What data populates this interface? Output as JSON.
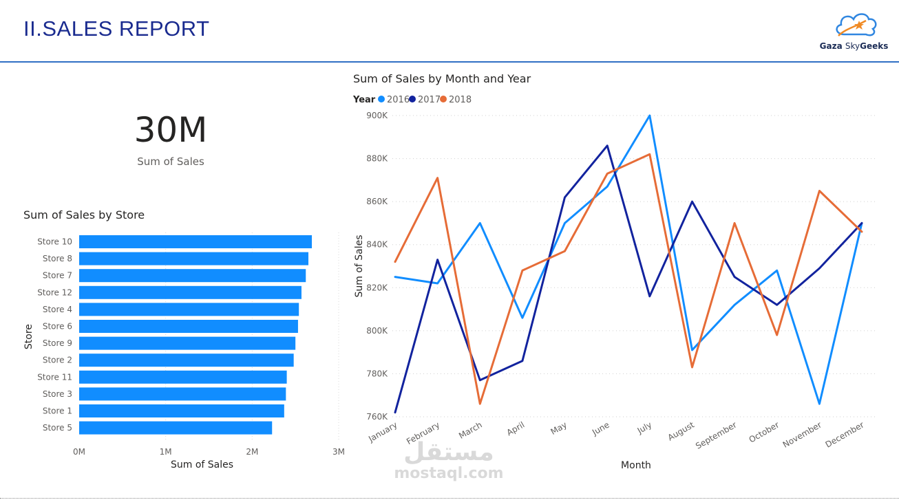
{
  "header": {
    "title": "II.SALES REPORT",
    "logo_text_1": "Gaza",
    "logo_text_2": "Sky",
    "logo_text_3": "Geeks"
  },
  "kpi": {
    "value": "30M",
    "label": "Sum of Sales"
  },
  "watermark": {
    "arabic": "مستقل",
    "latin": "mostaql.com"
  },
  "colors": {
    "bar": "#118dff",
    "s2016": "#118dff",
    "s2017": "#12239e",
    "s2018": "#e66c37",
    "title": "#1a2b8f"
  },
  "chart_data": [
    {
      "type": "bar",
      "orientation": "horizontal",
      "title": "Sum of Sales by Store",
      "xlabel": "Sum of Sales",
      "ylabel": "Store",
      "xlim": [
        0,
        3000000
      ],
      "xticks": [
        "0M",
        "1M",
        "2M",
        "3M"
      ],
      "categories": [
        "Store 10",
        "Store 8",
        "Store 7",
        "Store 12",
        "Store 4",
        "Store 6",
        "Store 9",
        "Store 2",
        "Store 11",
        "Store 3",
        "Store 1",
        "Store 5"
      ],
      "values": [
        2690000,
        2650000,
        2620000,
        2570000,
        2540000,
        2530000,
        2500000,
        2480000,
        2400000,
        2390000,
        2370000,
        2230000
      ]
    },
    {
      "type": "line",
      "title": "Sum of Sales by Month and Year",
      "xlabel": "Month",
      "ylabel": "Sum of Sales",
      "legend_title": "Year",
      "legend_position": "top-left",
      "ylim": [
        760000,
        900000
      ],
      "yticks": [
        "760K",
        "780K",
        "800K",
        "820K",
        "840K",
        "860K",
        "880K",
        "900K"
      ],
      "categories": [
        "January",
        "February",
        "March",
        "April",
        "May",
        "June",
        "July",
        "August",
        "September",
        "October",
        "November",
        "December"
      ],
      "series": [
        {
          "name": "2016",
          "values": [
            825000,
            822000,
            850000,
            806000,
            850000,
            867000,
            900000,
            791000,
            812000,
            828000,
            766000,
            850000
          ]
        },
        {
          "name": "2017",
          "values": [
            762000,
            833000,
            777000,
            786000,
            862000,
            886000,
            816000,
            860000,
            825000,
            812000,
            829000,
            850000
          ]
        },
        {
          "name": "2018",
          "values": [
            832000,
            871000,
            766000,
            828000,
            837000,
            873000,
            882000,
            783000,
            850000,
            798000,
            865000,
            846000
          ]
        }
      ]
    }
  ]
}
